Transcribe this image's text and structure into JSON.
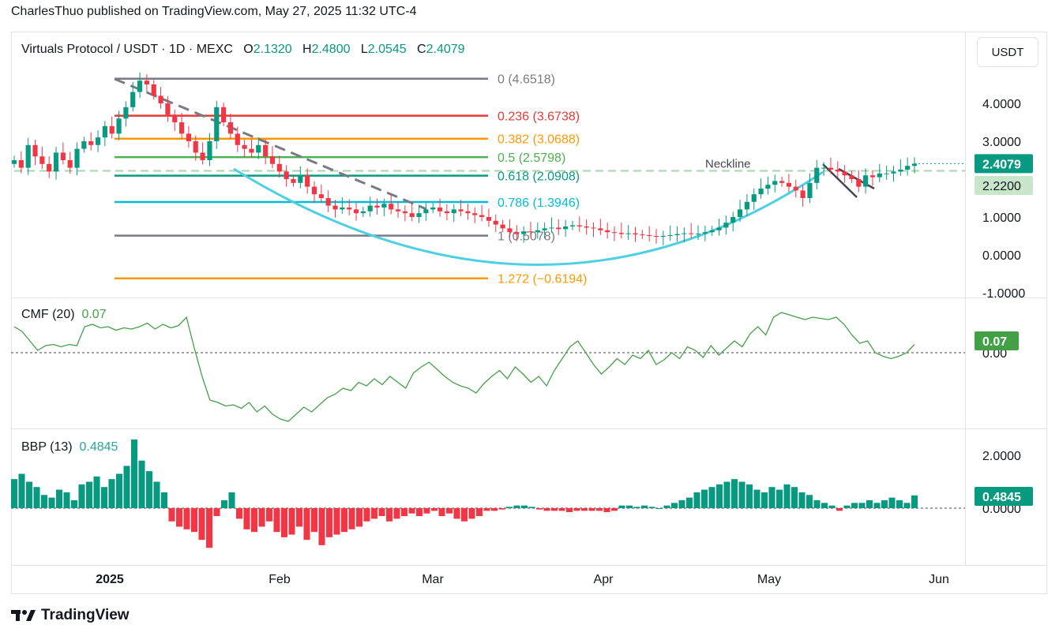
{
  "header": {
    "published": "CharlesThuo published on TradingView.com, May 27, 2025 11:32 UTC-4"
  },
  "footer": {
    "brand": "TradingView"
  },
  "legend": {
    "symbol": "Virtuals Protocol / USDT · 1D · MEXC",
    "o_label": "O",
    "o_value": "2.1320",
    "h_label": "H",
    "h_value": "2.4800",
    "l_label": "L",
    "l_value": "2.0545",
    "c_label": "C",
    "c_value": "2.4079"
  },
  "price_axis_unit": "USDT",
  "colors": {
    "up": "#089981",
    "down": "#f23645",
    "cup": "#4dd0e1",
    "cmf": "#43a047",
    "gray": "#787b86"
  },
  "chart_data": [
    {
      "type": "candlestick",
      "pane": "price",
      "yticks": [
        "4.0000",
        "3.0000",
        "1.0000",
        "0.0000",
        "-1.0000"
      ],
      "ylim": [
        -1.0,
        5.6
      ],
      "xticks": [
        "2025",
        "Feb",
        "Mar",
        "Apr",
        "May",
        "Jun"
      ],
      "last_price": "2.4079",
      "neckline_price": "2.2200",
      "neckline_label": "Neckline",
      "fib_levels": [
        {
          "ratio": 0,
          "price": 4.6518,
          "label": "0 (4.6518)",
          "color": "#787b86"
        },
        {
          "ratio": 0.236,
          "price": 3.6738,
          "label": "0.236 (3.6738)",
          "color": "#e53935"
        },
        {
          "ratio": 0.382,
          "price": 3.0688,
          "label": "0.382 (3.0688)",
          "color": "#ff9800"
        },
        {
          "ratio": 0.5,
          "price": 2.5798,
          "label": "0.5 (2.5798)",
          "color": "#4caf50"
        },
        {
          "ratio": 0.618,
          "price": 2.0908,
          "label": "0.618 (2.0908)",
          "color": "#089981"
        },
        {
          "ratio": 0.786,
          "price": 1.3946,
          "label": "0.786 (1.3946)",
          "color": "#00bcd4"
        },
        {
          "ratio": 1,
          "price": 0.5078,
          "label": "1 (0.5078)",
          "color": "#787b86"
        },
        {
          "ratio": 1.272,
          "price": -0.6194,
          "label": "1.272 (−0.6194)",
          "color": "#ff9800"
        }
      ],
      "closes": [
        2.5,
        2.3,
        2.9,
        2.6,
        2.4,
        2.2,
        2.7,
        2.5,
        2.3,
        2.8,
        3.0,
        2.9,
        3.1,
        3.4,
        3.2,
        3.6,
        3.9,
        4.3,
        4.6,
        4.5,
        4.2,
        4.0,
        3.7,
        3.5,
        3.2,
        3.0,
        2.7,
        2.5,
        3.0,
        3.9,
        3.5,
        3.2,
        2.9,
        2.8,
        2.7,
        2.9,
        2.6,
        2.4,
        2.2,
        2.0,
        1.9,
        2.1,
        1.8,
        1.6,
        1.5,
        1.3,
        1.2,
        1.25,
        1.2,
        1.1,
        1.15,
        1.3,
        1.25,
        1.35,
        1.2,
        1.15,
        1.1,
        1.0,
        1.1,
        1.2,
        1.25,
        1.15,
        1.1,
        1.2,
        1.15,
        1.1,
        1.05,
        1.0,
        0.9,
        0.8,
        0.7,
        0.6,
        0.55,
        0.62,
        0.6,
        0.65,
        0.7,
        0.72,
        0.68,
        0.75,
        0.78,
        0.75,
        0.72,
        0.7,
        0.65,
        0.6,
        0.58,
        0.55,
        0.57,
        0.54,
        0.52,
        0.5,
        0.48,
        0.5,
        0.52,
        0.55,
        0.57,
        0.55,
        0.56,
        0.6,
        0.65,
        0.72,
        0.85,
        1.0,
        1.2,
        1.4,
        1.6,
        1.75,
        1.85,
        1.95,
        1.9,
        1.8,
        1.7,
        1.5,
        1.9,
        2.3,
        2.3,
        2.25,
        2.2,
        2.1,
        2.0,
        1.8,
        2.1,
        2.05,
        2.15,
        2.15,
        2.2,
        2.25,
        2.35,
        2.4079
      ]
    },
    {
      "type": "line",
      "pane": "CMF",
      "name": "CMF (20)",
      "current_value": "0.07",
      "ytick": "0.00",
      "values": [
        0.22,
        0.18,
        0.1,
        0.02,
        0.06,
        0.07,
        0.05,
        0.07,
        0.06,
        0.22,
        0.24,
        0.21,
        0.22,
        0.19,
        0.21,
        0.2,
        0.22,
        0.25,
        0.2,
        0.24,
        0.21,
        0.23,
        0.3,
        0.04,
        -0.2,
        -0.4,
        -0.42,
        -0.45,
        -0.44,
        -0.47,
        -0.42,
        -0.5,
        -0.45,
        -0.52,
        -0.56,
        -0.58,
        -0.52,
        -0.46,
        -0.5,
        -0.44,
        -0.38,
        -0.35,
        -0.3,
        -0.32,
        -0.25,
        -0.28,
        -0.22,
        -0.27,
        -0.2,
        -0.25,
        -0.3,
        -0.17,
        -0.12,
        -0.08,
        -0.14,
        -0.2,
        -0.25,
        -0.28,
        -0.3,
        -0.34,
        -0.26,
        -0.2,
        -0.15,
        -0.22,
        -0.12,
        -0.18,
        -0.25,
        -0.2,
        -0.28,
        -0.15,
        -0.05,
        0.05,
        0.1,
        0.0,
        -0.1,
        -0.18,
        -0.12,
        -0.05,
        -0.1,
        -0.02,
        -0.05,
        0.02,
        -0.1,
        -0.06,
        0.0,
        -0.05,
        0.05,
        0.02,
        -0.04,
        0.06,
        -0.02,
        0.04,
        0.1,
        0.05,
        0.16,
        0.22,
        0.15,
        0.3,
        0.34,
        0.32,
        0.3,
        0.28,
        0.3,
        0.29,
        0.28,
        0.3,
        0.24,
        0.15,
        0.08,
        0.1,
        0.0,
        -0.03,
        -0.05,
        -0.03,
        0.0,
        0.07
      ]
    },
    {
      "type": "bar",
      "pane": "BBP",
      "name": "BBP (13)",
      "current_value": "0.4845",
      "yticks": [
        "2.0000",
        "0.0000"
      ],
      "values": [
        1.1,
        1.3,
        1.0,
        0.8,
        0.5,
        0.4,
        0.7,
        0.6,
        0.3,
        0.9,
        1.0,
        1.2,
        0.8,
        1.1,
        1.3,
        1.6,
        2.6,
        1.8,
        1.4,
        1.0,
        0.6,
        -0.5,
        -0.7,
        -0.8,
        -0.9,
        -1.2,
        -1.5,
        -0.3,
        0.3,
        0.6,
        -0.4,
        -0.8,
        -0.9,
        -0.7,
        -0.5,
        -0.9,
        -1.1,
        -1.0,
        -0.7,
        -1.2,
        -0.9,
        -1.4,
        -1.1,
        -1.0,
        -0.9,
        -0.8,
        -0.7,
        -0.5,
        -0.4,
        -0.3,
        -0.5,
        -0.4,
        -0.3,
        -0.2,
        -0.3,
        -0.2,
        -0.1,
        -0.3,
        -0.2,
        -0.4,
        -0.5,
        -0.4,
        -0.3,
        -0.1,
        -0.1,
        -0.05,
        0.05,
        0.1,
        0.1,
        0.05,
        -0.05,
        -0.1,
        -0.1,
        -0.1,
        -0.15,
        -0.1,
        -0.1,
        -0.1,
        -0.1,
        -0.15,
        -0.1,
        0.1,
        0.1,
        0.05,
        0.1,
        0.05,
        0.0,
        0.1,
        0.2,
        0.3,
        0.4,
        0.6,
        0.7,
        0.8,
        0.9,
        1.0,
        1.1,
        1.0,
        0.9,
        0.7,
        0.6,
        0.8,
        0.7,
        0.9,
        0.8,
        0.6,
        0.5,
        0.3,
        0.2,
        0.1,
        -0.1,
        0.1,
        0.2,
        0.2,
        0.3,
        0.2,
        0.3,
        0.4,
        0.3,
        0.2,
        0.4845
      ]
    }
  ],
  "cmf_price_label": "0.07",
  "bbp_price_label": "0.4845"
}
